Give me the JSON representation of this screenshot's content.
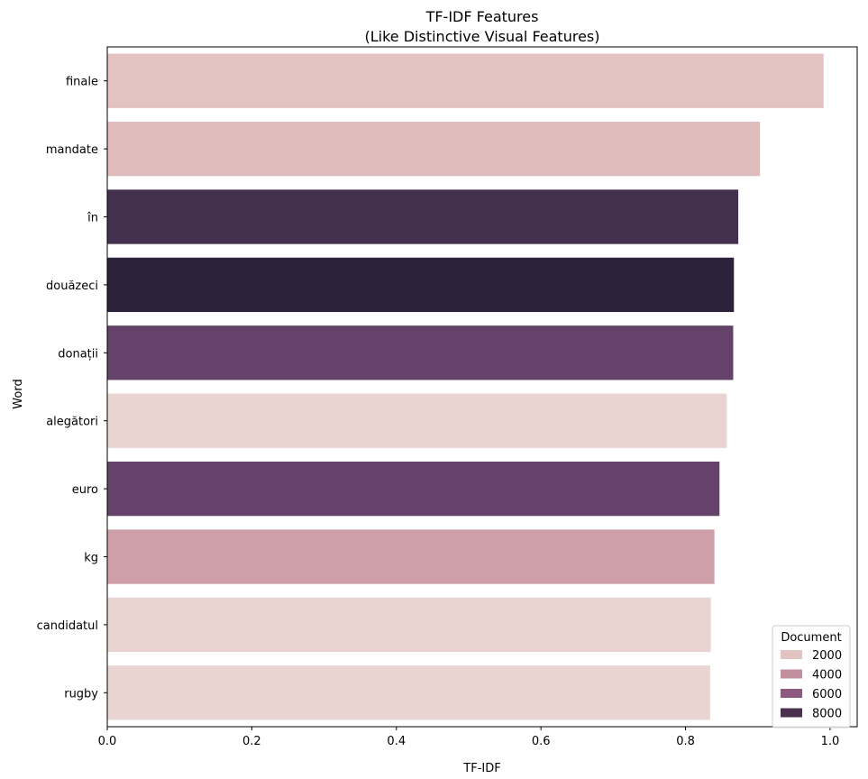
{
  "chart_data": {
    "type": "bar",
    "orientation": "horizontal",
    "title": "TF-IDF Features",
    "subtitle": "(Like Distinctive Visual Features)",
    "xlabel": "TF-IDF",
    "ylabel": "Word",
    "xlim": [
      0.0,
      1.0375
    ],
    "xticks": [
      "0.0",
      "0.2",
      "0.4",
      "0.6",
      "0.8",
      "1.0"
    ],
    "grid": false,
    "categories": [
      "finale",
      "mandate",
      "în",
      "douăzeci",
      "donații",
      "alegători",
      "euro",
      "kg",
      "candidatul",
      "rugby"
    ],
    "values": [
      0.991,
      0.903,
      0.873,
      0.867,
      0.866,
      0.857,
      0.847,
      0.84,
      0.835,
      0.834
    ],
    "bar_colors": [
      "#e2c3c1",
      "#dfbbbc",
      "#43304f",
      "#2e213a",
      "#65426a",
      "#e9d4d1",
      "#65426a",
      "#cf9fa9",
      "#e9d4d1",
      "#e9d4d1"
    ],
    "legend": {
      "title": "Document",
      "placement": "lower right",
      "entries": [
        {
          "label": "2000",
          "color": "#e2c3c1"
        },
        {
          "label": "4000",
          "color": "#c18e9d"
        },
        {
          "label": "6000",
          "color": "#8c5a81"
        },
        {
          "label": "8000",
          "color": "#4a2f4f"
        }
      ]
    }
  }
}
